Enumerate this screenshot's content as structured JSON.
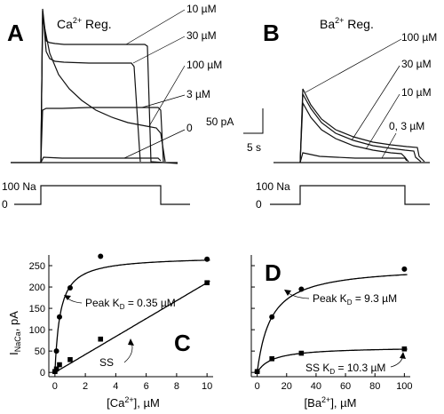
{
  "panel_a": {
    "letter": "A",
    "title_prefix": "Ca",
    "title_sup": "2+",
    "title_suffix": " Reg.",
    "traces": [
      {
        "label": "10 µM",
        "level": 0.92
      },
      {
        "label": "30 µM",
        "level": 0.79
      },
      {
        "label": "100 µM",
        "level": 0.48
      },
      {
        "label": "3 µM",
        "level": 0.45
      },
      {
        "label": "0",
        "level": 0.03
      }
    ],
    "scale_current": "50 pA",
    "scale_time": "5 s",
    "protocol_top": "100 Na",
    "protocol_bottom": "0"
  },
  "panel_b": {
    "letter": "B",
    "title_prefix": "Ba",
    "title_sup": "2+",
    "title_suffix": " Reg.",
    "traces": [
      {
        "label": "100 µM"
      },
      {
        "label": "30 µM"
      },
      {
        "label": "10 µM"
      },
      {
        "label": "0, 3 µM"
      }
    ],
    "protocol_top": "100 Na",
    "protocol_bottom": "0"
  },
  "chart_data": [
    {
      "panel": "C",
      "type": "scatter",
      "xlabel_prefix": "[Ca",
      "xlabel_sup": "2+",
      "xlabel_suffix": "], µM",
      "ylabel_main": "I",
      "ylabel_sub": "NaCa",
      "ylabel_suffix": ", pA",
      "xlim": [
        -0.4,
        10.4
      ],
      "ylim": [
        -10,
        275
      ],
      "xticks": [
        0,
        2,
        4,
        6,
        8,
        10
      ],
      "yticks": [
        0,
        50,
        100,
        150,
        200,
        250
      ],
      "series": [
        {
          "name": "Peak",
          "marker": "circle",
          "x": [
            0,
            0.1,
            0.3,
            1,
            3,
            10
          ],
          "y": [
            2,
            50,
            130,
            198,
            272,
            265
          ]
        },
        {
          "name": "SS",
          "marker": "square",
          "x": [
            0,
            0.1,
            0.3,
            1,
            3,
            10
          ],
          "y": [
            2,
            8,
            18,
            30,
            78,
            210
          ]
        }
      ],
      "annotations": [
        {
          "text_prefix": "Peak K",
          "text_sub": "D",
          "text_suffix": " = 0.35 µM"
        },
        {
          "text": "SS"
        }
      ],
      "letter": "C"
    },
    {
      "panel": "D",
      "type": "scatter",
      "xlabel_prefix": "[Ba",
      "xlabel_sup": "2+",
      "xlabel_suffix": "], µM",
      "xlim": [
        -4,
        104
      ],
      "ylim": [
        -10,
        275
      ],
      "xticks": [
        0,
        20,
        40,
        60,
        80,
        100
      ],
      "series": [
        {
          "name": "Peak",
          "marker": "circle",
          "x": [
            0,
            10,
            30,
            100
          ],
          "y": [
            2,
            130,
            195,
            242
          ]
        },
        {
          "name": "SS",
          "marker": "square",
          "x": [
            0,
            10,
            30,
            100
          ],
          "y": [
            2,
            32,
            45,
            55
          ]
        }
      ],
      "annotations": [
        {
          "text_prefix": "Peak K",
          "text_sub": "D",
          "text_suffix": " = 9.3 µM"
        },
        {
          "text_prefix": "SS K",
          "text_sub": "D",
          "text_suffix": " = 10.3 µM"
        }
      ],
      "letter": "D"
    }
  ]
}
